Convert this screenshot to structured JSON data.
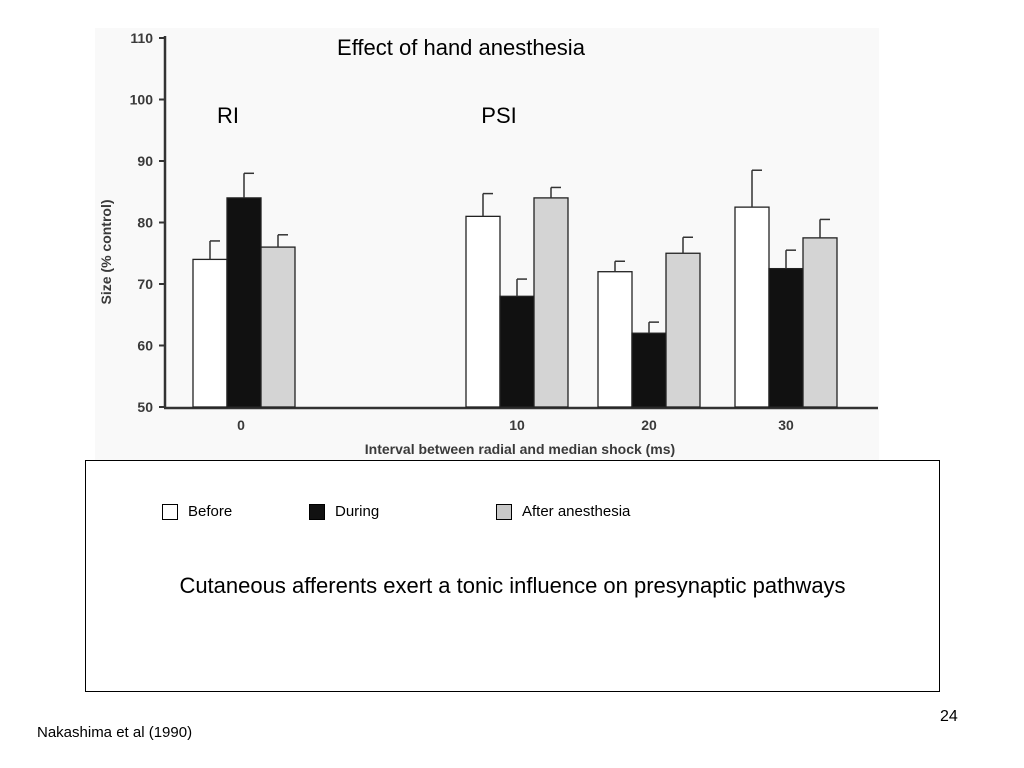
{
  "chart_data": {
    "type": "bar",
    "title": "Effect of hand anesthesia",
    "region_labels": [
      "RI",
      "PSI"
    ],
    "xlabel": "Interval between radial and median shock (ms)",
    "ylabel": "Size (% control)",
    "ylim": [
      50,
      110
    ],
    "yticks": [
      50,
      60,
      70,
      80,
      90,
      100,
      110
    ],
    "categories": [
      "0",
      "10",
      "20",
      "30"
    ],
    "series": [
      {
        "name": "Before",
        "color": "#ffffff",
        "values": [
          74,
          81,
          72,
          82.5
        ],
        "error_top": [
          77,
          84.7,
          73.7,
          88.5
        ]
      },
      {
        "name": "During",
        "color": "#111111",
        "values": [
          84,
          68,
          62,
          72.5
        ],
        "error_top": [
          88,
          70.8,
          63.8,
          75.5
        ]
      },
      {
        "name": "After anesthesia",
        "color": "#d4d4d4",
        "values": [
          76,
          84,
          75,
          77.5
        ],
        "error_top": [
          78,
          85.7,
          77.6,
          80.5
        ]
      }
    ]
  },
  "legend": {
    "before": "Before",
    "during": "During",
    "after": "After anesthesia"
  },
  "message": "Cutaneous afferents exert a tonic influence on presynaptic pathways",
  "page_number": "24",
  "citation": "Nakashima et al (1990)"
}
